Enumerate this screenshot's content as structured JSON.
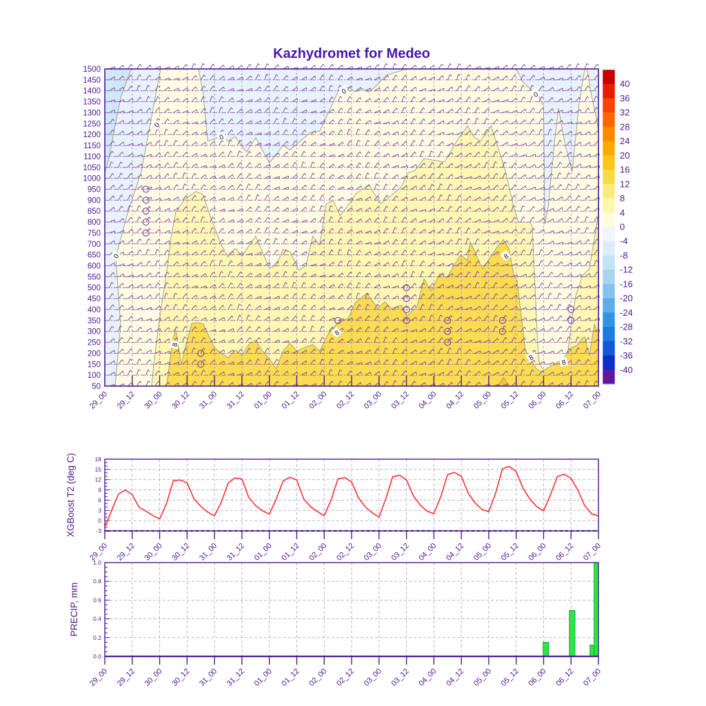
{
  "title": "Kazhydromet for Medeo",
  "colors": {
    "axis": "#4a1a8e",
    "tick_label": "#4c1692",
    "title": "#4418aa",
    "grid_light": "#b9a5d6",
    "grid_mid": "#9a7ec8",
    "barb": "#7c3aa8",
    "contour_line": "#9a9a78",
    "t2_line": "#f73131",
    "bar_fill": "#2fe648",
    "bar_stroke": "#0da32b",
    "band_below_m4": "#cfe7f7",
    "band_m4_0": "#e7f2fb",
    "band_0_4": "#fdfce2",
    "band_4_8": "#fcf8b4",
    "band_8_12": "#fadc52",
    "band_12_16": "#f8c630",
    "label_box_bg": "#ffffff",
    "label_box_text": "#111111"
  },
  "x_axis": {
    "labels": [
      "29_00",
      "29_12",
      "30_00",
      "30_12",
      "31_00",
      "31_12",
      "01_00",
      "01_12",
      "02_00",
      "02_12",
      "03_00",
      "03_12",
      "04_00",
      "04_12",
      "05_00",
      "05_12",
      "06_00",
      "06_12",
      "07_00"
    ],
    "hours": [
      0,
      12,
      24,
      36,
      48,
      60,
      72,
      84,
      96,
      108,
      120,
      132,
      144,
      156,
      168,
      180,
      192,
      204,
      216
    ],
    "total_hours": 216
  },
  "chart_data": [
    {
      "type": "heatmap",
      "name": "temperature-height-contour",
      "title": "Kazhydromet for Medeo",
      "y_ticks": [
        1500,
        1450,
        1400,
        1350,
        1300,
        1250,
        1200,
        1150,
        1100,
        1050,
        1000,
        950,
        900,
        850,
        800,
        750,
        700,
        650,
        600,
        550,
        500,
        450,
        400,
        350,
        300,
        250,
        200,
        150,
        100,
        50
      ],
      "ylim": [
        50,
        1500
      ],
      "colorbar": {
        "ticks": [
          40,
          36,
          32,
          28,
          24,
          20,
          16,
          12,
          8,
          4,
          0,
          -4,
          -8,
          -12,
          -16,
          -20,
          -24,
          -28,
          -32,
          -36,
          -40
        ],
        "cell_colors_top_to_bottom": [
          "#c40000",
          "#e51e00",
          "#f64400",
          "#ff6600",
          "#ff8800",
          "#ffaa00",
          "#fcc41e",
          "#f8da46",
          "#faeb7e",
          "#fdf6b0",
          "#fefce0",
          "#eef6fc",
          "#dcedf9",
          "#c4e3f6",
          "#a8d4f0",
          "#86c3ec",
          "#5aade8",
          "#2f94e4",
          "#1a7ce0",
          "#1159d8",
          "#0c2ec8",
          "#5f17a2"
        ]
      },
      "bands": {
        "blue_corner_below_m4": [
          [
            0,
            1500
          ],
          [
            11.5,
            1500
          ],
          [
            7,
            1370
          ],
          [
            4,
            1215
          ],
          [
            1.8,
            1090
          ],
          [
            0,
            1025
          ]
        ],
        "band_0_4": [
          [
            4.5,
            50
          ],
          [
            6.9,
            330
          ],
          [
            4.8,
            640
          ],
          [
            10,
            840
          ],
          [
            16,
            1030
          ],
          [
            21,
            1310
          ],
          [
            24.4,
            1500
          ],
          [
            41,
            1500
          ],
          [
            43,
            1390
          ],
          [
            45,
            1170
          ],
          [
            51,
            1190
          ],
          [
            54,
            1170
          ],
          [
            57,
            1190
          ],
          [
            62,
            1120
          ],
          [
            66,
            1185
          ],
          [
            72,
            1070
          ],
          [
            78,
            1150
          ],
          [
            81,
            1130
          ],
          [
            90,
            1210
          ],
          [
            94,
            1215
          ],
          [
            102.5,
            1405
          ],
          [
            107,
            1415
          ],
          [
            109.5,
            1395
          ],
          [
            112.5,
            1410
          ],
          [
            115.5,
            1395
          ],
          [
            118.5,
            1420
          ],
          [
            123,
            1470
          ],
          [
            132,
            1500
          ],
          [
            180,
            1500
          ],
          [
            183,
            1440
          ],
          [
            186,
            1410
          ],
          [
            189,
            1390
          ],
          [
            192,
            1330
          ],
          [
            192.3,
            1030
          ],
          [
            192.5,
            790
          ],
          [
            194,
            870
          ],
          [
            195.5,
            1030
          ],
          [
            197,
            1185
          ],
          [
            198.5,
            1320
          ],
          [
            201.5,
            1150
          ],
          [
            204.5,
            1030
          ],
          [
            207.5,
            1340
          ],
          [
            210,
            1500
          ],
          [
            211,
            1500
          ],
          [
            213,
            1375
          ],
          [
            215,
            1280
          ],
          [
            216,
            1215
          ],
          [
            216,
            50
          ]
        ],
        "band_4_8": [
          [
            20.5,
            50
          ],
          [
            21.4,
            150
          ],
          [
            24,
            360
          ],
          [
            27,
            570
          ],
          [
            29,
            730
          ],
          [
            31,
            845
          ],
          [
            35,
            905
          ],
          [
            40,
            940
          ],
          [
            43,
            925
          ],
          [
            46,
            830
          ],
          [
            51,
            695
          ],
          [
            54,
            640
          ],
          [
            57,
            680
          ],
          [
            60,
            645
          ],
          [
            66,
            735
          ],
          [
            72,
            590
          ],
          [
            75,
            600
          ],
          [
            78,
            675
          ],
          [
            81,
            665
          ],
          [
            85,
            580
          ],
          [
            88,
            600
          ],
          [
            91,
            735
          ],
          [
            94,
            695
          ],
          [
            97,
            885
          ],
          [
            100,
            895
          ],
          [
            103,
            830
          ],
          [
            107,
            885
          ],
          [
            110,
            930
          ],
          [
            115.5,
            970
          ],
          [
            120.7,
            885
          ],
          [
            124,
            910
          ],
          [
            129.7,
            960
          ],
          [
            132.7,
            1025
          ],
          [
            135.7,
            1035
          ],
          [
            139.7,
            1090
          ],
          [
            148.7,
            1075
          ],
          [
            152.3,
            1140
          ],
          [
            154,
            1170
          ],
          [
            158.7,
            1240
          ],
          [
            161.4,
            1190
          ],
          [
            164.4,
            1170
          ],
          [
            169,
            1240
          ],
          [
            175,
            1045
          ],
          [
            179,
            865
          ],
          [
            181,
            800
          ],
          [
            186,
            800
          ],
          [
            187,
            780
          ],
          [
            188,
            560
          ],
          [
            189.4,
            240
          ],
          [
            190,
            160
          ],
          [
            192,
            120
          ],
          [
            197,
            100
          ],
          [
            202,
            150
          ],
          [
            204.5,
            365
          ],
          [
            206,
            460
          ],
          [
            209,
            555
          ],
          [
            212,
            585
          ],
          [
            213.5,
            680
          ],
          [
            215,
            775
          ],
          [
            216,
            840
          ],
          [
            216,
            50
          ]
        ],
        "band_8_12": [
          [
            27,
            50
          ],
          [
            29.6,
            255
          ],
          [
            31,
            310
          ],
          [
            33.5,
            150
          ],
          [
            35.6,
            240
          ],
          [
            38,
            335
          ],
          [
            40,
            340
          ],
          [
            43,
            335
          ],
          [
            48,
            225
          ],
          [
            51,
            200
          ],
          [
            54,
            180
          ],
          [
            57,
            215
          ],
          [
            60,
            190
          ],
          [
            63,
            240
          ],
          [
            66,
            260
          ],
          [
            69,
            210
          ],
          [
            72,
            175
          ],
          [
            75,
            130
          ],
          [
            78,
            210
          ],
          [
            81,
            245
          ],
          [
            84,
            210
          ],
          [
            87,
            225
          ],
          [
            91,
            240
          ],
          [
            94,
            210
          ],
          [
            98,
            295
          ],
          [
            102.5,
            345
          ],
          [
            106.5,
            360
          ],
          [
            109.5,
            430
          ],
          [
            114.6,
            475
          ],
          [
            119.5,
            405
          ],
          [
            122.5,
            435
          ],
          [
            125.5,
            405
          ],
          [
            129.7,
            420
          ],
          [
            132.2,
            370
          ],
          [
            136.6,
            415
          ],
          [
            139.7,
            540
          ],
          [
            142.7,
            485
          ],
          [
            146.7,
            565
          ],
          [
            149.7,
            545
          ],
          [
            153,
            605
          ],
          [
            155.7,
            650
          ],
          [
            158.7,
            625
          ],
          [
            159.9,
            710
          ],
          [
            162.3,
            655
          ],
          [
            165.3,
            585
          ],
          [
            171.3,
            680
          ],
          [
            174.4,
            720
          ],
          [
            176.8,
            680
          ],
          [
            179,
            555
          ],
          [
            180.4,
            530
          ],
          [
            183.4,
            270
          ],
          [
            184,
            215
          ],
          [
            188.8,
            130
          ],
          [
            191,
            115
          ],
          [
            195.5,
            145
          ],
          [
            200,
            170
          ],
          [
            204.5,
            225
          ],
          [
            207,
            240
          ],
          [
            209,
            270
          ],
          [
            210,
            275
          ],
          [
            212,
            190
          ],
          [
            214.3,
            335
          ],
          [
            215.3,
            300
          ],
          [
            216,
            300
          ],
          [
            216,
            50
          ]
        ],
        "band_12_16": [
          [
            172,
            50
          ],
          [
            174.5,
            90
          ],
          [
            177,
            50
          ]
        ]
      },
      "contour_labels": [
        {
          "text": "0",
          "hour": 4.8,
          "level": 645,
          "rot": -60
        },
        {
          "text": "0",
          "hour": 22.6,
          "level": 1245,
          "rot": -60
        },
        {
          "text": "0",
          "hour": 51,
          "level": 1190,
          "rot": -15
        },
        {
          "text": "0",
          "hour": 104.5,
          "level": 1400,
          "rot": -30
        },
        {
          "text": "0",
          "hour": 188.5,
          "level": 1385,
          "rot": -30
        },
        {
          "text": "8",
          "hour": 30.5,
          "level": 240,
          "rot": -75
        },
        {
          "text": "8",
          "hour": 101.5,
          "level": 295,
          "rot": -40
        },
        {
          "text": "8",
          "hour": 175.5,
          "level": 645,
          "rot": -40
        },
        {
          "text": "8",
          "hour": 186.5,
          "level": 182,
          "rot": -30
        },
        {
          "text": "8",
          "hour": 200.8,
          "level": 160,
          "rot": -15
        }
      ],
      "calm_markers": [
        {
          "hour": 18,
          "levels": [
            950,
            900,
            850,
            800,
            750
          ]
        },
        {
          "hour": 42,
          "levels": [
            200,
            150
          ]
        },
        {
          "hour": 102,
          "levels": [
            350
          ]
        },
        {
          "hour": 132,
          "levels": [
            500,
            450,
            400,
            350
          ]
        },
        {
          "hour": 150,
          "levels": [
            350,
            300,
            250
          ]
        },
        {
          "hour": 174,
          "levels": [
            350,
            300
          ]
        },
        {
          "hour": 204,
          "levels": [
            400,
            350
          ]
        }
      ],
      "wind_barbs": {
        "levels_from": 50,
        "levels_to": 1500,
        "level_step": 50,
        "col_step_hours": 4
      }
    },
    {
      "type": "line",
      "name": "XGBoost T2 (deg C)",
      "ylabel": "XGBoost T2 (deg C)",
      "y_ticks": [
        -3,
        0,
        3,
        6,
        9,
        12,
        15,
        18
      ],
      "ylim": [
        -3,
        18
      ],
      "step_hours": 3,
      "values": [
        -2.0,
        3.0,
        7.8,
        9.0,
        7.6,
        3.9,
        2.8,
        1.5,
        0.5,
        5.0,
        11.7,
        11.9,
        11.1,
        6.4,
        4.2,
        2.5,
        1.4,
        5.5,
        11.0,
        12.5,
        12.2,
        6.8,
        4.4,
        2.9,
        1.9,
        6.3,
        11.6,
        12.7,
        11.9,
        6.4,
        4.1,
        2.7,
        1.4,
        6.0,
        12.2,
        12.6,
        11.3,
        6.7,
        4.0,
        2.3,
        1.0,
        6.5,
        12.9,
        13.3,
        11.9,
        7.3,
        4.6,
        2.8,
        2.0,
        7.0,
        13.5,
        14.1,
        13.0,
        8.0,
        5.2,
        3.3,
        2.6,
        8.0,
        15.2,
        15.9,
        14.3,
        9.5,
        6.3,
        4.1,
        2.9,
        7.5,
        12.9,
        13.6,
        12.4,
        8.9,
        4.4,
        2.0,
        1.4
      ]
    },
    {
      "type": "bar",
      "name": "PRECIP, mm",
      "ylabel": "PRECIP, mm",
      "y_ticks": [
        0.0,
        0.2,
        0.4,
        0.6,
        0.8,
        1.0
      ],
      "ylim": [
        0,
        1.0
      ],
      "bar_width_hours": 2.4,
      "bars": [
        {
          "hour": 193,
          "value": 0.15
        },
        {
          "hour": 204.5,
          "value": 0.49
        },
        {
          "hour": 213.5,
          "value": 0.12
        },
        {
          "hour": 215.3,
          "value": 1.0
        }
      ]
    }
  ]
}
